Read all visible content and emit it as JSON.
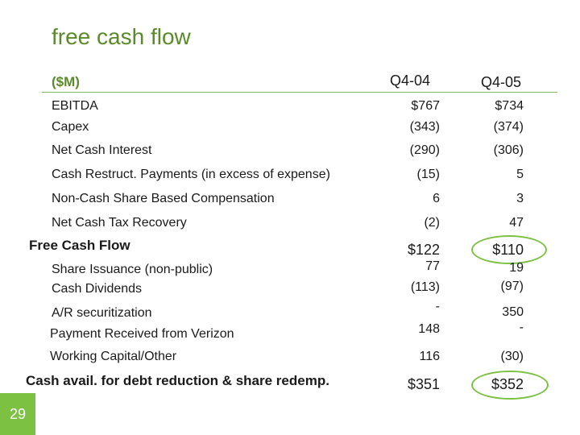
{
  "title": "free cash flow",
  "unit_label": "($M)",
  "columns": [
    "Q4-04",
    "Q4-05"
  ],
  "rows": {
    "ebitda": {
      "label": "EBITDA",
      "q404": "$767",
      "q405": "$734"
    },
    "capex": {
      "label": "Capex",
      "q404": "(343)",
      "q405": "(374)"
    },
    "interest": {
      "label": "Net Cash Interest",
      "q404": "(290)",
      "q405": "(306)"
    },
    "restruct": {
      "label": "Cash Restruct. Payments (in excess of expense)",
      "q404": "(15)",
      "q405": "5"
    },
    "sbc": {
      "label": "Non-Cash Share Based Compensation",
      "q404": "6",
      "q405": "3"
    },
    "tax": {
      "label": "Net Cash Tax Recovery",
      "q404": "(2)",
      "q405": "47"
    },
    "fcf": {
      "label": "Free Cash Flow",
      "q404": "$122",
      "q405": "$110"
    },
    "issuance": {
      "label": "Share Issuance (non-public)",
      "q404": "77",
      "q405": "19"
    },
    "dividends": {
      "label": "Cash Dividends",
      "q404": "(113)",
      "q405": "(97)"
    },
    "ar": {
      "label": "A/R securitization",
      "q404": "-",
      "q405": "350"
    },
    "verizon": {
      "label": "Payment Received from Verizon",
      "q404": "148",
      "q405": "-"
    },
    "workingcap": {
      "label": "Working Capital/Other",
      "q404": "116",
      "q405": "(30)"
    },
    "cashavail": {
      "label": "Cash avail. for debt reduction & share redemp.",
      "q404": "$351",
      "q405": "$352"
    }
  },
  "page_number": "29",
  "accent_color": "#7dc142"
}
